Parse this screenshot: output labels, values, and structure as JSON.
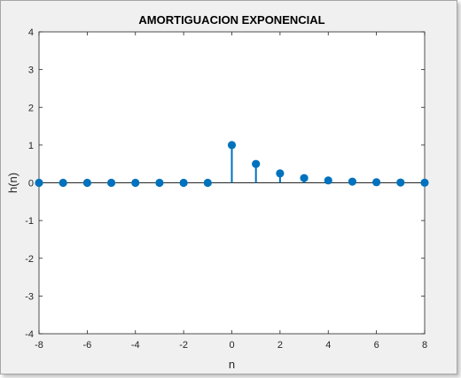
{
  "chart_data": {
    "type": "stem",
    "title": "AMORTIGUACION EXPONENCIAL",
    "xlabel": "n",
    "ylabel": "h(n)",
    "xlim": [
      -8,
      8
    ],
    "ylim": [
      -4,
      4
    ],
    "xticks": [
      -8,
      -6,
      -4,
      -2,
      0,
      2,
      4,
      6,
      8
    ],
    "yticks": [
      -4,
      -3,
      -2,
      -1,
      0,
      1,
      2,
      3,
      4
    ],
    "grid": false,
    "series": [
      {
        "x": [
          -8,
          -7,
          -6,
          -5,
          -4,
          -3,
          -2,
          -1,
          0,
          1,
          2,
          3,
          4,
          5,
          6,
          7,
          8
        ],
        "y": [
          0,
          0,
          0,
          0,
          0,
          0,
          0,
          0,
          1,
          0.5,
          0.25,
          0.125,
          0.0625,
          0.03125,
          0.015625,
          0.0078125,
          0.00390625
        ]
      }
    ]
  },
  "colors": {
    "stem": "#0072bd",
    "axis": "#262626",
    "plot_background": "#ffffff",
    "figure_background": "#f0f0f0"
  }
}
